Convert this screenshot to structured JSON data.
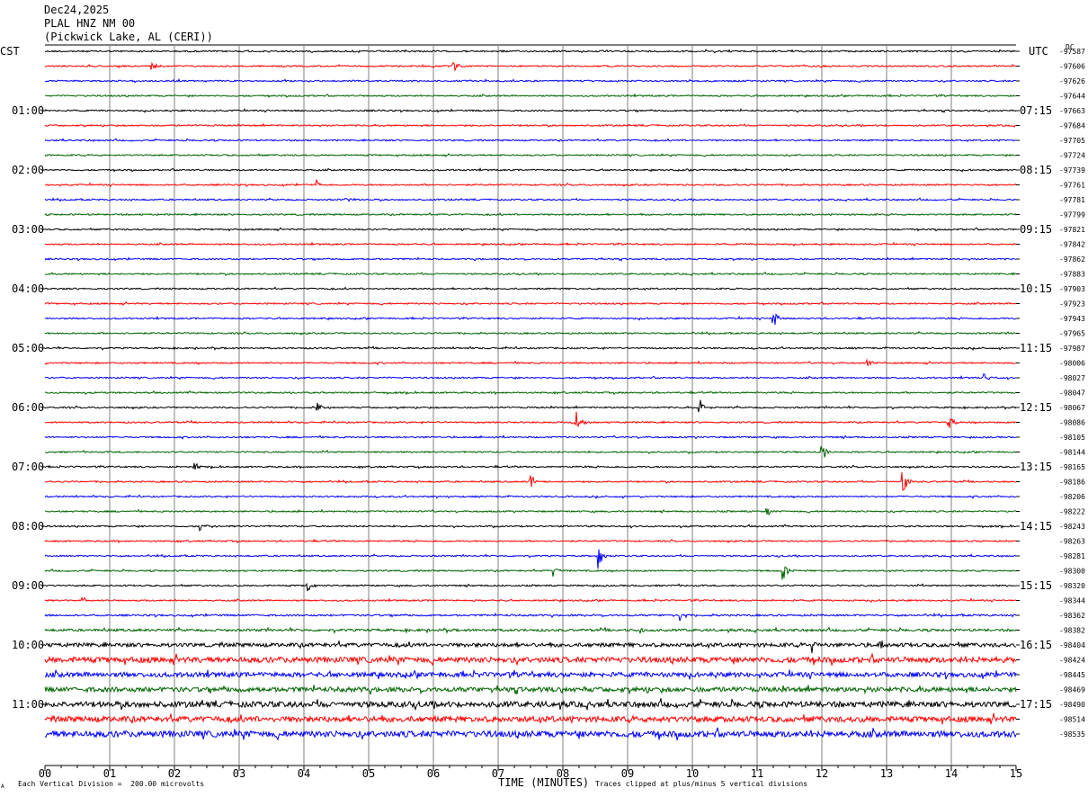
{
  "header": {
    "date": "Dec24,2025",
    "station": "PLAL HNZ NM 00",
    "location": "(Pickwick Lake, AL (CERI))"
  },
  "left_timezone": "CST",
  "right_timezone": "UTC",
  "right_top_tag": "DC",
  "footer": {
    "left_mark": "A",
    "scale_note": "Each Vertical Division =  200.00 microvolts",
    "xlabel": "TIME (MINUTES)",
    "clip_note": "Traces clipped at plus/minus 5 vertical divisions"
  },
  "colors": {
    "trace_cycle": [
      "#000000",
      "#ff0000",
      "#0000ff",
      "#006400"
    ],
    "grid": "#808080"
  },
  "chart_data": {
    "type": "line",
    "title": "",
    "xlabel": "TIME (MINUTES)",
    "xlim": [
      0,
      15
    ],
    "x_ticks": [
      "00",
      "01",
      "02",
      "03",
      "04",
      "05",
      "06",
      "07",
      "08",
      "09",
      "10",
      "11",
      "12",
      "13",
      "14",
      "15"
    ],
    "left_hour_labels": [
      "01:00",
      "02:00",
      "03:00",
      "04:00",
      "05:00",
      "06:00",
      "07:00",
      "08:00",
      "09:00",
      "10:00",
      "11:00"
    ],
    "right_hour_labels": [
      "07:15",
      "08:15",
      "09:15",
      "10:15",
      "11:15",
      "12:15",
      "13:15",
      "14:15",
      "15:15",
      "16:15",
      "17:15"
    ],
    "trace_offsets": [
      "-97587",
      "-97606",
      "-97626",
      "-97644",
      "-97663",
      "-97684",
      "-97705",
      "-97724",
      "-97739",
      "-97761",
      "-97781",
      "-97799",
      "-97821",
      "-97842",
      "-97862",
      "-97883",
      "-97903",
      "-97923",
      "-97943",
      "-97965",
      "-97987",
      "-98006",
      "-98027",
      "-98047",
      "-98067",
      "-98086",
      "-98105",
      "-98144",
      "-98165",
      "-98186",
      "-98206",
      "-98222",
      "-98243",
      "-98263",
      "-98281",
      "-98300",
      "-98320",
      "-98344",
      "-98362",
      "-98382",
      "-98404",
      "-98424",
      "-98445",
      "-98469",
      "-98490",
      "-98514",
      "-98535"
    ],
    "noise_levels": [
      1,
      1,
      1,
      1,
      1,
      1,
      1,
      1,
      1,
      1,
      1,
      1,
      1,
      1,
      1,
      1,
      1,
      1,
      1,
      1,
      1,
      1,
      1,
      1,
      1,
      1,
      1,
      1,
      1,
      1,
      1,
      1,
      1,
      1,
      1,
      1,
      1,
      1,
      1.2,
      1.6,
      2.6,
      3.8,
      3.2,
      3.2,
      3.8,
      3.8,
      4.2
    ],
    "events": [
      {
        "trace": 1,
        "minute": 1.65,
        "amp": 6
      },
      {
        "trace": 1,
        "minute": 6.3,
        "amp": 8
      },
      {
        "trace": 9,
        "minute": 4.2,
        "amp": 5
      },
      {
        "trace": 10,
        "minute": 4.65,
        "amp": 6
      },
      {
        "trace": 18,
        "minute": 11.25,
        "amp": 12
      },
      {
        "trace": 21,
        "minute": 12.7,
        "amp": 5
      },
      {
        "trace": 22,
        "minute": 14.5,
        "amp": 7
      },
      {
        "trace": 24,
        "minute": 4.2,
        "amp": 6
      },
      {
        "trace": 24,
        "minute": 10.1,
        "amp": 14
      },
      {
        "trace": 25,
        "minute": 8.2,
        "amp": 14
      },
      {
        "trace": 25,
        "minute": 13.95,
        "amp": 10
      },
      {
        "trace": 27,
        "minute": 12.0,
        "amp": 11
      },
      {
        "trace": 28,
        "minute": 2.3,
        "amp": 6
      },
      {
        "trace": 29,
        "minute": 13.25,
        "amp": 16
      },
      {
        "trace": 29,
        "minute": 7.5,
        "amp": 10
      },
      {
        "trace": 31,
        "minute": 11.15,
        "amp": 7
      },
      {
        "trace": 32,
        "minute": 2.4,
        "amp": 7
      },
      {
        "trace": 34,
        "minute": 8.55,
        "amp": 14
      },
      {
        "trace": 35,
        "minute": 11.4,
        "amp": 12
      },
      {
        "trace": 35,
        "minute": 7.85,
        "amp": 6
      },
      {
        "trace": 36,
        "minute": 4.05,
        "amp": 10
      },
      {
        "trace": 37,
        "minute": 0.55,
        "amp": 7
      },
      {
        "trace": 38,
        "minute": 9.8,
        "amp": 9
      },
      {
        "trace": 39,
        "minute": 9.2,
        "amp": 6
      },
      {
        "trace": 40,
        "minute": 11.85,
        "amp": 9
      },
      {
        "trace": 40,
        "minute": 12.9,
        "amp": 10
      }
    ]
  }
}
